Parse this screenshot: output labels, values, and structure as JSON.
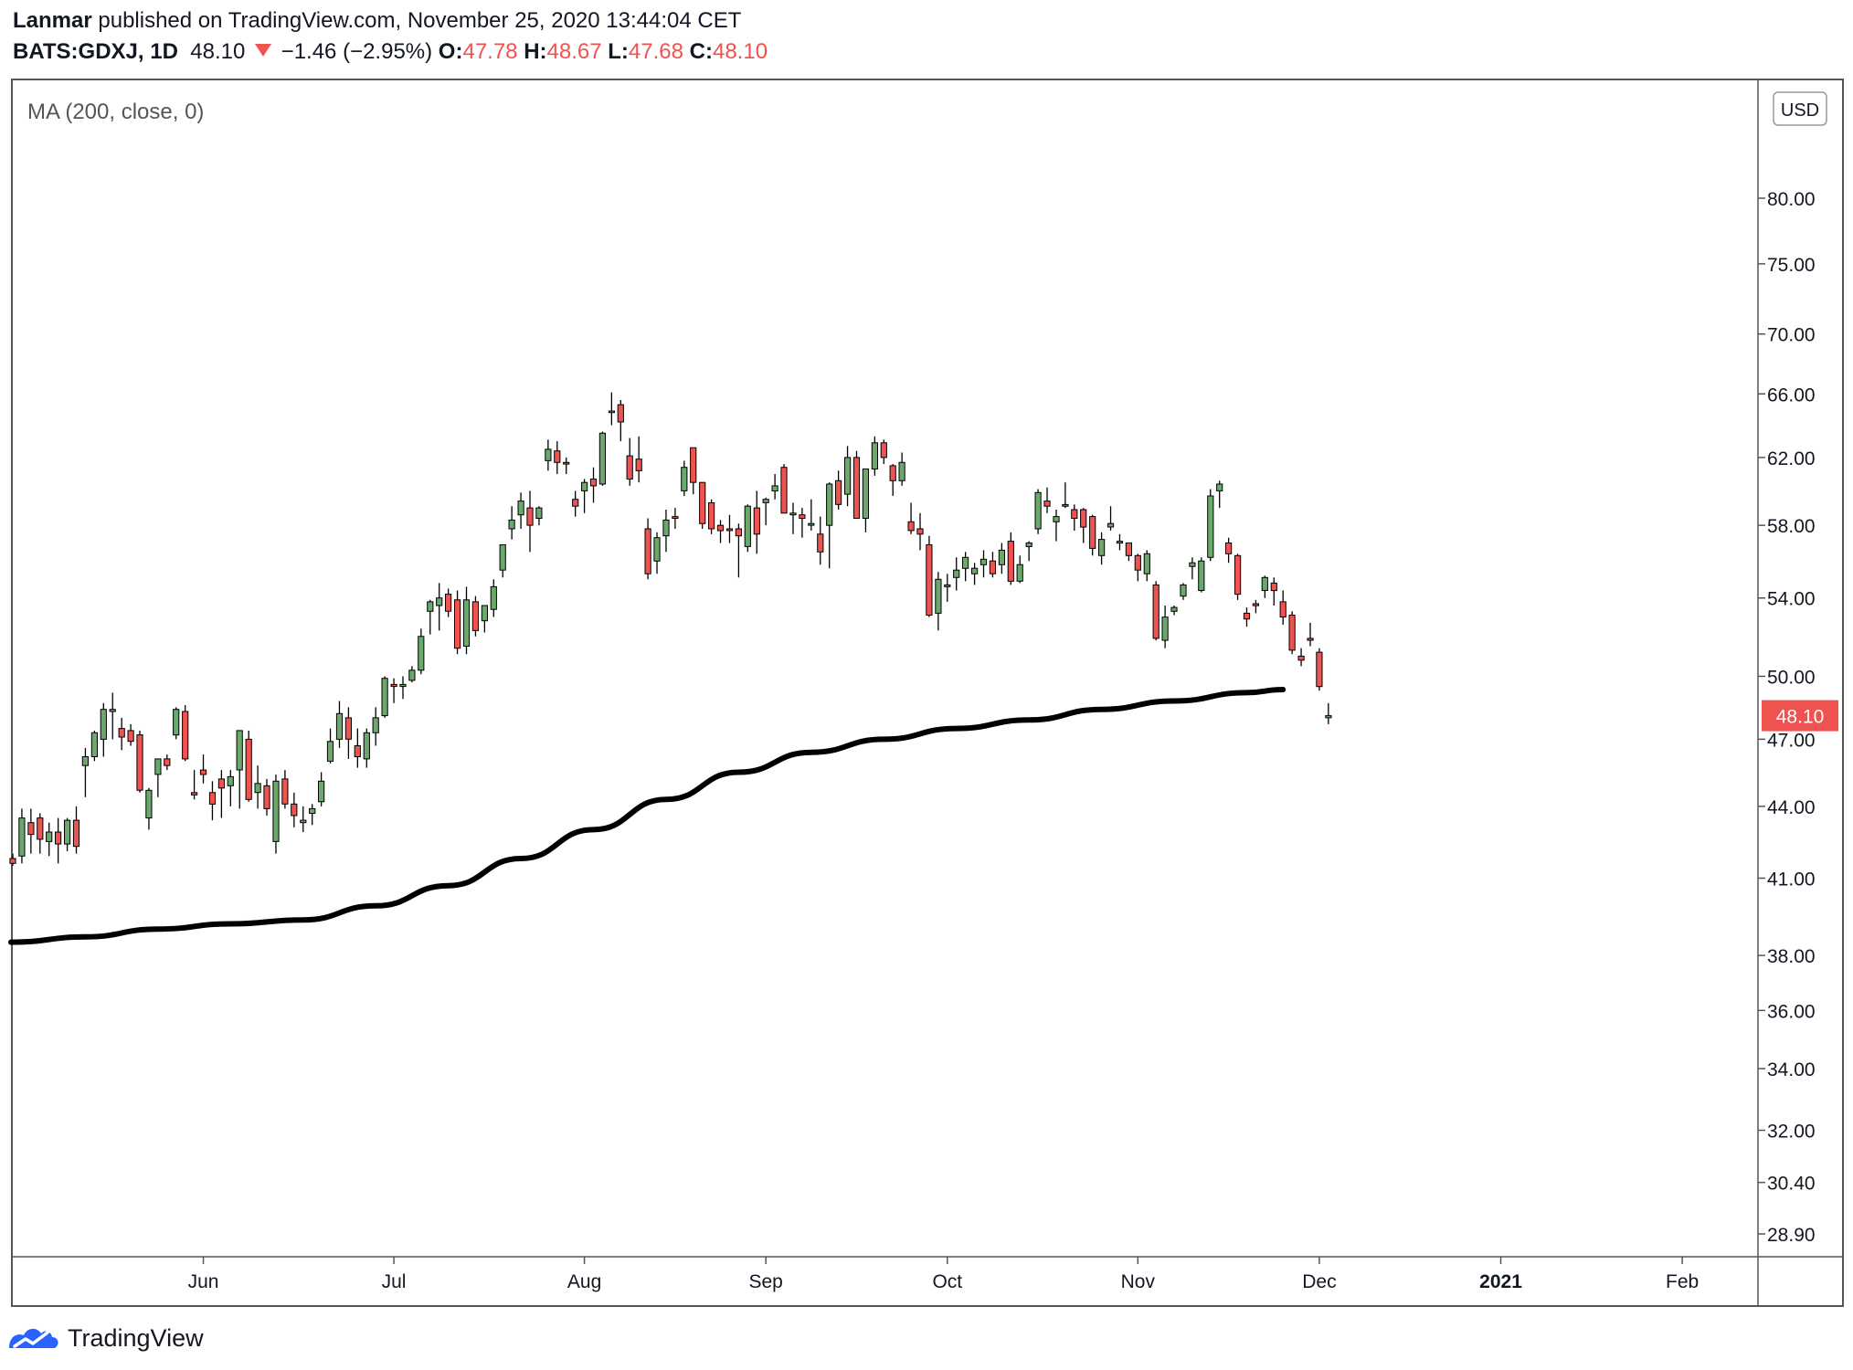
{
  "header": {
    "author": "Lanmar",
    "published_text": "published on TradingView.com, November 25, 2020 13:44:04 CET",
    "symbol": "BATS:GDXJ, 1D",
    "last": "48.10",
    "change": "−1.46 (−2.95%)",
    "o_label": "O:",
    "o_value": "47.78",
    "h_label": "H:",
    "h_value": "48.67",
    "l_label": "L:",
    "l_value": "47.68",
    "c_label": "C:",
    "c_value": "48.10"
  },
  "indicator_label": "MA (200, close, 0)",
  "currency": "USD",
  "price_tag": "48.10",
  "footer": {
    "brand": "TradingView"
  },
  "colors": {
    "up": "#6aa86b",
    "down": "#ef5350",
    "ma": "#000000",
    "axis_text": "#131722"
  },
  "chart_data": {
    "type": "candlestick",
    "scale": "log",
    "symbol": "BATS:GDXJ",
    "interval": "1D",
    "y_ticks": [
      80,
      75,
      70,
      66,
      62,
      58,
      54,
      50,
      47,
      44,
      41,
      38,
      36,
      34,
      32,
      30.4,
      28.9
    ],
    "y_tick_labels": [
      "80.00",
      "75.00",
      "70.00",
      "66.00",
      "62.00",
      "58.00",
      "54.00",
      "50.00",
      "47.00",
      "44.00",
      "41.00",
      "38.00",
      "36.00",
      "34.00",
      "32.00",
      "30.40",
      "28.90"
    ],
    "x_ticks": [
      {
        "label": "Jun",
        "index": 21,
        "bold": false
      },
      {
        "label": "Jul",
        "index": 42,
        "bold": false
      },
      {
        "label": "Aug",
        "index": 63,
        "bold": false
      },
      {
        "label": "Sep",
        "index": 83,
        "bold": false
      },
      {
        "label": "Oct",
        "index": 103,
        "bold": false
      },
      {
        "label": "Nov",
        "index": 124,
        "bold": false
      },
      {
        "label": "Dec",
        "index": 144,
        "bold": false
      },
      {
        "label": "2021",
        "index": 164,
        "bold": true
      },
      {
        "label": "Feb",
        "index": 184,
        "bold": false
      }
    ],
    "candles": [
      [
        41.8,
        42.0,
        41.5,
        41.6
      ],
      [
        41.9,
        43.9,
        41.6,
        43.5
      ],
      [
        43.3,
        43.9,
        42.0,
        42.8
      ],
      [
        43.5,
        43.7,
        42.0,
        42.6
      ],
      [
        42.5,
        43.3,
        41.9,
        42.9
      ],
      [
        42.9,
        43.5,
        41.6,
        42.4
      ],
      [
        42.4,
        43.5,
        42.1,
        43.4
      ],
      [
        43.4,
        44.0,
        42.0,
        42.3
      ],
      [
        45.8,
        46.6,
        44.4,
        46.2
      ],
      [
        46.2,
        47.4,
        46.0,
        47.3
      ],
      [
        47.0,
        48.7,
        46.2,
        48.4
      ],
      [
        48.3,
        49.2,
        47.0,
        48.4
      ],
      [
        47.5,
        48.0,
        46.5,
        47.1
      ],
      [
        47.4,
        47.7,
        46.7,
        46.9
      ],
      [
        47.2,
        47.4,
        44.6,
        44.7
      ],
      [
        43.5,
        44.8,
        43.0,
        44.7
      ],
      [
        45.4,
        46.0,
        44.4,
        46.1
      ],
      [
        46.1,
        46.3,
        45.6,
        45.8
      ],
      [
        47.2,
        48.5,
        47.0,
        48.4
      ],
      [
        48.3,
        48.6,
        46.0,
        46.1
      ],
      [
        44.6,
        45.6,
        44.3,
        44.5
      ],
      [
        45.6,
        46.3,
        45.0,
        45.4
      ],
      [
        44.6,
        45.1,
        43.4,
        44.1
      ],
      [
        45.2,
        45.6,
        43.5,
        44.8
      ],
      [
        44.9,
        45.6,
        44.0,
        45.3
      ],
      [
        45.6,
        47.4,
        43.9,
        47.4
      ],
      [
        47.0,
        47.4,
        44.2,
        44.3
      ],
      [
        44.6,
        45.8,
        43.9,
        45.0
      ],
      [
        44.9,
        45.2,
        43.6,
        43.9
      ],
      [
        42.5,
        45.4,
        42.0,
        45.1
      ],
      [
        45.2,
        45.6,
        43.9,
        44.1
      ],
      [
        44.1,
        44.6,
        43.1,
        43.6
      ],
      [
        43.3,
        44.0,
        42.9,
        43.4
      ],
      [
        43.7,
        44.1,
        43.2,
        43.9
      ],
      [
        44.2,
        45.5,
        44.0,
        45.1
      ],
      [
        46.0,
        47.5,
        45.9,
        46.9
      ],
      [
        47.0,
        48.8,
        46.6,
        48.2
      ],
      [
        48.0,
        48.5,
        46.1,
        47.0
      ],
      [
        46.7,
        47.5,
        45.7,
        46.2
      ],
      [
        46.1,
        47.5,
        45.7,
        47.3
      ],
      [
        47.3,
        48.5,
        46.7,
        48.0
      ],
      [
        48.1,
        50.0,
        48.0,
        49.9
      ],
      [
        49.6,
        49.9,
        48.7,
        49.5
      ],
      [
        49.5,
        50.0,
        48.9,
        49.6
      ],
      [
        49.8,
        50.5,
        49.7,
        50.3
      ],
      [
        50.3,
        52.4,
        50.1,
        52.0
      ],
      [
        53.3,
        53.9,
        52.1,
        53.8
      ],
      [
        53.6,
        54.8,
        52.3,
        54.0
      ],
      [
        54.2,
        54.5,
        53.0,
        53.3
      ],
      [
        53.9,
        54.4,
        51.1,
        51.4
      ],
      [
        51.5,
        54.6,
        51.1,
        53.9
      ],
      [
        53.8,
        54.1,
        52.0,
        52.3
      ],
      [
        52.8,
        53.6,
        52.2,
        53.6
      ],
      [
        53.4,
        55.0,
        53.0,
        54.6
      ],
      [
        55.5,
        56.9,
        55.1,
        56.9
      ],
      [
        57.8,
        59.1,
        57.2,
        58.3
      ],
      [
        58.6,
        59.9,
        57.8,
        59.4
      ],
      [
        59.0,
        60.0,
        56.5,
        58.0
      ],
      [
        58.4,
        59.1,
        58.0,
        59.0
      ],
      [
        61.8,
        63.1,
        61.2,
        62.5
      ],
      [
        62.4,
        63.0,
        61.0,
        61.7
      ],
      [
        61.7,
        62.0,
        61.0,
        61.6
      ],
      [
        59.5,
        60.0,
        58.5,
        59.1
      ],
      [
        60.0,
        60.7,
        58.7,
        60.5
      ],
      [
        60.7,
        61.4,
        59.3,
        60.3
      ],
      [
        60.4,
        63.6,
        60.3,
        63.5
      ],
      [
        64.8,
        66.1,
        64.0,
        64.9
      ],
      [
        65.3,
        65.6,
        63.0,
        64.2
      ],
      [
        62.1,
        63.2,
        60.3,
        60.7
      ],
      [
        61.9,
        63.3,
        60.5,
        61.2
      ],
      [
        57.8,
        58.4,
        55.0,
        55.3
      ],
      [
        56.0,
        57.6,
        55.3,
        57.3
      ],
      [
        57.4,
        58.9,
        56.5,
        58.3
      ],
      [
        58.5,
        59.0,
        57.8,
        58.4
      ],
      [
        60.0,
        61.8,
        59.7,
        61.4
      ],
      [
        62.6,
        62.6,
        59.8,
        60.5
      ],
      [
        60.5,
        60.5,
        57.8,
        58.1
      ],
      [
        59.3,
        59.5,
        57.5,
        57.8
      ],
      [
        58.0,
        58.3,
        57.0,
        57.7
      ],
      [
        57.8,
        58.6,
        57.0,
        57.7
      ],
      [
        57.8,
        58.1,
        55.1,
        57.4
      ],
      [
        56.8,
        59.2,
        56.5,
        59.1
      ],
      [
        59.0,
        60.0,
        56.4,
        57.5
      ],
      [
        59.3,
        59.6,
        58.0,
        59.5
      ],
      [
        60.0,
        61.0,
        59.5,
        60.3
      ],
      [
        61.4,
        61.6,
        58.7,
        58.7
      ],
      [
        58.6,
        59.3,
        57.5,
        58.7
      ],
      [
        58.6,
        59.0,
        57.3,
        58.4
      ],
      [
        58.0,
        59.5,
        57.7,
        58.1
      ],
      [
        57.5,
        58.5,
        55.8,
        56.5
      ],
      [
        58.0,
        60.5,
        55.6,
        60.4
      ],
      [
        60.6,
        61.2,
        58.9,
        59.2
      ],
      [
        59.8,
        62.7,
        59.1,
        62.0
      ],
      [
        62.0,
        62.4,
        58.4,
        58.4
      ],
      [
        58.4,
        61.3,
        57.6,
        61.3
      ],
      [
        61.3,
        63.3,
        60.9,
        62.9
      ],
      [
        62.9,
        63.1,
        61.6,
        62.0
      ],
      [
        61.5,
        61.6,
        59.7,
        60.6
      ],
      [
        60.6,
        62.3,
        60.3,
        61.7
      ],
      [
        58.2,
        59.3,
        57.5,
        57.7
      ],
      [
        57.8,
        58.7,
        56.6,
        57.5
      ],
      [
        56.9,
        57.4,
        53.0,
        53.1
      ],
      [
        53.2,
        55.4,
        52.3,
        55.0
      ],
      [
        54.7,
        55.3,
        53.8,
        54.6
      ],
      [
        55.1,
        56.2,
        54.4,
        55.5
      ],
      [
        55.6,
        56.5,
        54.9,
        56.2
      ],
      [
        55.3,
        55.9,
        54.7,
        55.6
      ],
      [
        55.8,
        56.6,
        55.1,
        56.1
      ],
      [
        56.0,
        56.5,
        55.1,
        55.3
      ],
      [
        55.8,
        57.0,
        55.3,
        56.6
      ],
      [
        57.1,
        57.6,
        54.7,
        54.9
      ],
      [
        54.9,
        56.3,
        54.8,
        55.8
      ],
      [
        56.8,
        57.1,
        56.0,
        57.0
      ],
      [
        57.8,
        60.1,
        57.5,
        59.9
      ],
      [
        59.4,
        60.2,
        58.7,
        59.1
      ],
      [
        58.2,
        58.9,
        57.1,
        58.5
      ],
      [
        59.2,
        60.5,
        59.0,
        59.1
      ],
      [
        58.9,
        59.2,
        57.7,
        58.4
      ],
      [
        58.9,
        59.0,
        57.0,
        57.9
      ],
      [
        58.5,
        58.6,
        56.3,
        56.7
      ],
      [
        56.3,
        57.6,
        55.8,
        57.2
      ],
      [
        57.9,
        59.1,
        57.7,
        58.1
      ],
      [
        57.1,
        57.5,
        56.6,
        57.0
      ],
      [
        57.0,
        57.0,
        56.0,
        56.3
      ],
      [
        56.3,
        56.4,
        54.9,
        55.5
      ],
      [
        55.3,
        56.6,
        54.9,
        56.4
      ],
      [
        54.7,
        54.9,
        51.8,
        51.9
      ],
      [
        51.8,
        53.6,
        51.4,
        53.0
      ],
      [
        53.3,
        53.6,
        53.1,
        53.5
      ],
      [
        54.1,
        54.8,
        53.9,
        54.7
      ],
      [
        55.7,
        56.2,
        55.0,
        55.9
      ],
      [
        54.4,
        56.2,
        54.3,
        56.0
      ],
      [
        56.2,
        60.1,
        56.0,
        59.7
      ],
      [
        60.0,
        60.6,
        59.0,
        60.4
      ],
      [
        57.0,
        57.3,
        55.9,
        56.4
      ],
      [
        56.3,
        56.4,
        53.9,
        54.2
      ],
      [
        53.2,
        53.5,
        52.5,
        52.9
      ],
      [
        53.7,
        53.9,
        53.2,
        53.6
      ],
      [
        54.4,
        55.2,
        54.0,
        55.1
      ],
      [
        54.8,
        55.1,
        53.6,
        54.4
      ],
      [
        53.8,
        54.4,
        52.6,
        53.0
      ],
      [
        53.1,
        53.3,
        51.1,
        51.3
      ],
      [
        51.0,
        51.4,
        50.5,
        50.8
      ],
      [
        51.9,
        52.7,
        51.5,
        51.8
      ],
      [
        51.2,
        51.4,
        49.3,
        49.5
      ],
      [
        48.0,
        48.7,
        47.7,
        48.1
      ]
    ],
    "ma200": {
      "label": "MA (200, close, 0)",
      "points": [
        [
          0,
          38.5
        ],
        [
          8,
          38.7
        ],
        [
          16,
          39.0
        ],
        [
          24,
          39.2
        ],
        [
          32,
          39.35
        ],
        [
          40,
          39.9
        ],
        [
          48,
          40.7
        ],
        [
          56,
          41.8
        ],
        [
          64,
          43.0
        ],
        [
          72,
          44.3
        ],
        [
          80,
          45.5
        ],
        [
          88,
          46.4
        ],
        [
          96,
          47.0
        ],
        [
          104,
          47.5
        ],
        [
          112,
          47.9
        ],
        [
          120,
          48.4
        ],
        [
          128,
          48.8
        ],
        [
          136,
          49.2
        ],
        [
          140,
          49.35
        ]
      ]
    },
    "last_price": 48.1
  }
}
